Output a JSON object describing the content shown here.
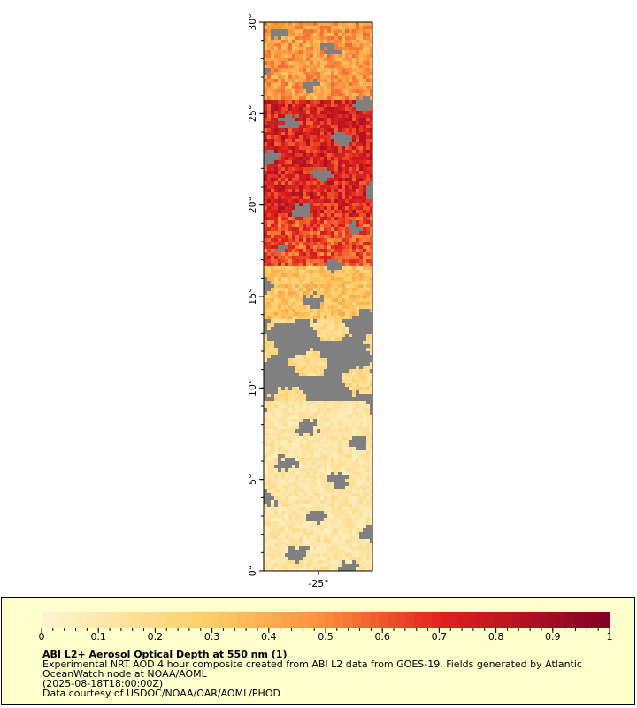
{
  "map": {
    "lat_labels": [
      "0°",
      "5°",
      "10°",
      "15°",
      "20°",
      "25°",
      "30°"
    ],
    "lon_labels": [
      "-25°"
    ]
  },
  "colorbar": {
    "ticks": [
      0,
      0.1,
      0.2,
      0.3,
      0.4,
      0.5,
      0.6,
      0.7,
      0.8,
      0.9,
      1
    ]
  },
  "legend": {
    "title": "ABI L2+ Aerosol Optical Depth at 550 nm (1)",
    "lines": [
      "Experimental NRT AOD 4 hour composite created from ABI L2 data from GOES-19. Fields generated by Atlantic",
      "OceanWatch node at NOAA/AOML",
      "(2025-08-18T18:00:00Z)",
      "Data courtesy of USDOC/NOAA/OAR/AOML/PHOD"
    ]
  }
}
